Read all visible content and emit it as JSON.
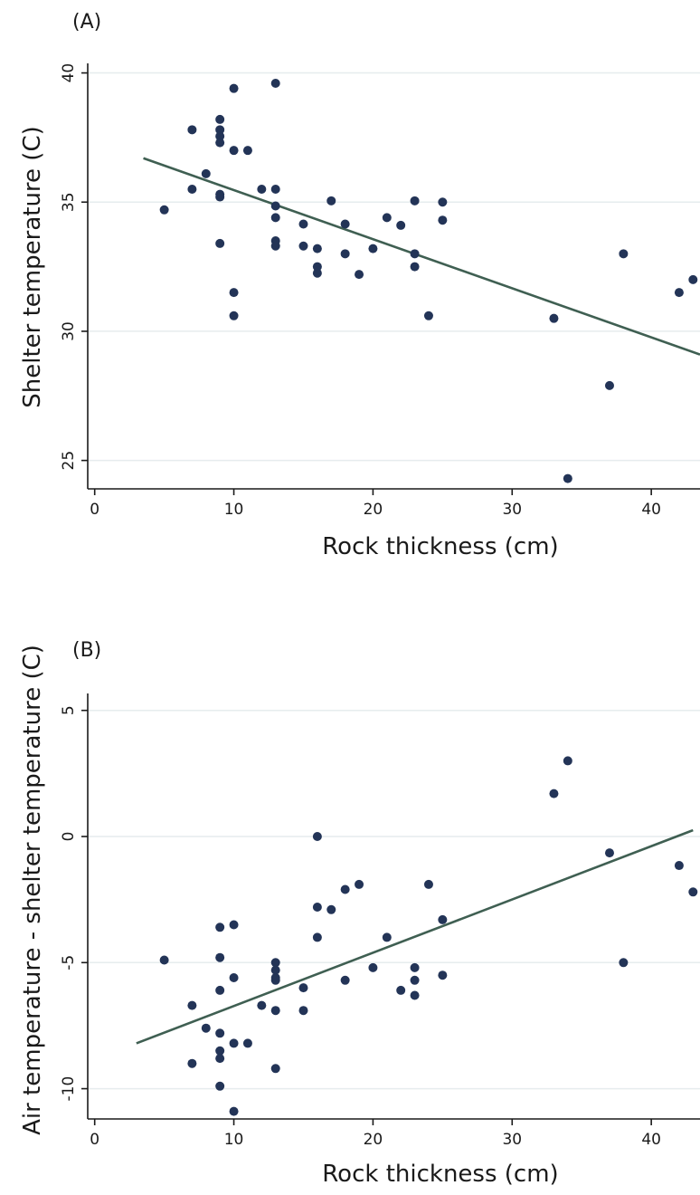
{
  "chart_data": [
    {
      "type": "scatter",
      "panel_label": "(A)",
      "xlabel": "Rock thickness (cm)",
      "ylabel": "Shelter temperature (C)",
      "xlim": [
        -0.5,
        43.5
      ],
      "ylim": [
        23.9,
        40.3
      ],
      "x_ticks": [
        0,
        10,
        20,
        30,
        40
      ],
      "y_ticks": [
        25,
        30,
        35,
        40
      ],
      "grid": true,
      "legend": "none",
      "colors": {
        "points": "#233457",
        "fit_line": "#3f5f52",
        "grid": "#e6ecee"
      },
      "points": [
        [
          5,
          34.7
        ],
        [
          7,
          37.8
        ],
        [
          7,
          35.5
        ],
        [
          8,
          36.1
        ],
        [
          9,
          38.2
        ],
        [
          9,
          37.8
        ],
        [
          9,
          37.55
        ],
        [
          9,
          37.3
        ],
        [
          9,
          35.3
        ],
        [
          9,
          35.2
        ],
        [
          9,
          33.4
        ],
        [
          10,
          39.4
        ],
        [
          10,
          37.0
        ],
        [
          10,
          31.5
        ],
        [
          10,
          30.6
        ],
        [
          11,
          37.0
        ],
        [
          12,
          35.5
        ],
        [
          13,
          39.6
        ],
        [
          13,
          35.5
        ],
        [
          13,
          34.85
        ],
        [
          13,
          34.4
        ],
        [
          13,
          33.5
        ],
        [
          13,
          33.3
        ],
        [
          15,
          34.15
        ],
        [
          15,
          33.3
        ],
        [
          16,
          33.2
        ],
        [
          16,
          32.5
        ],
        [
          16,
          32.25
        ],
        [
          17,
          35.05
        ],
        [
          18,
          34.15
        ],
        [
          18,
          33.0
        ],
        [
          19,
          32.2
        ],
        [
          20,
          33.2
        ],
        [
          21,
          34.4
        ],
        [
          22,
          34.1
        ],
        [
          23,
          35.05
        ],
        [
          23,
          33.0
        ],
        [
          23,
          32.5
        ],
        [
          24,
          30.6
        ],
        [
          25,
          35.0
        ],
        [
          25,
          34.3
        ],
        [
          33,
          30.5
        ],
        [
          34,
          24.3
        ],
        [
          37,
          27.9
        ],
        [
          38,
          33.0
        ],
        [
          42,
          31.5
        ],
        [
          43,
          32.0
        ]
      ],
      "fit_line": [
        [
          3.5,
          36.7
        ],
        [
          43.5,
          29.1
        ]
      ]
    },
    {
      "type": "scatter",
      "panel_label": "(B)",
      "xlabel": "Rock thickness (cm)",
      "ylabel": "Air temperature - shelter temperature (C)",
      "xlim": [
        -0.5,
        43.5
      ],
      "ylim": [
        -11.2,
        5.6
      ],
      "x_ticks": [
        0,
        10,
        20,
        30,
        40
      ],
      "y_ticks": [
        5,
        0,
        -5,
        -10
      ],
      "grid": true,
      "legend": "none",
      "colors": {
        "points": "#233457",
        "fit_line": "#3f5f52",
        "grid": "#e6ecee"
      },
      "points": [
        [
          5,
          -4.9
        ],
        [
          7,
          -6.7
        ],
        [
          7,
          -9.0
        ],
        [
          8,
          -7.6
        ],
        [
          9,
          -3.6
        ],
        [
          9,
          -4.8
        ],
        [
          9,
          -6.1
        ],
        [
          9,
          -7.8
        ],
        [
          9,
          -8.5
        ],
        [
          9,
          -8.8
        ],
        [
          9,
          -9.9
        ],
        [
          10,
          -3.5
        ],
        [
          10,
          -5.6
        ],
        [
          10,
          -8.2
        ],
        [
          10,
          -10.9
        ],
        [
          11,
          -8.2
        ],
        [
          12,
          -6.7
        ],
        [
          13,
          -5.0
        ],
        [
          13,
          -5.3
        ],
        [
          13,
          -5.6
        ],
        [
          13,
          -5.7
        ],
        [
          13,
          -6.9
        ],
        [
          13,
          -9.2
        ],
        [
          15,
          -6.0
        ],
        [
          15,
          -6.9
        ],
        [
          16,
          0.0
        ],
        [
          16,
          -2.8
        ],
        [
          16,
          -4.0
        ],
        [
          17,
          -2.9
        ],
        [
          18,
          -2.1
        ],
        [
          18,
          -5.7
        ],
        [
          19,
          -1.9
        ],
        [
          20,
          -5.2
        ],
        [
          21,
          -4.0
        ],
        [
          22,
          -6.1
        ],
        [
          23,
          -5.2
        ],
        [
          23,
          -5.7
        ],
        [
          23,
          -6.3
        ],
        [
          24,
          -1.9
        ],
        [
          25,
          -3.3
        ],
        [
          25,
          -5.5
        ],
        [
          33,
          1.7
        ],
        [
          34,
          3.0
        ],
        [
          37,
          -0.65
        ],
        [
          38,
          -5.0
        ],
        [
          42,
          -1.15
        ],
        [
          43,
          -2.2
        ]
      ],
      "fit_line": [
        [
          3,
          -8.2
        ],
        [
          43,
          0.25
        ]
      ]
    }
  ]
}
